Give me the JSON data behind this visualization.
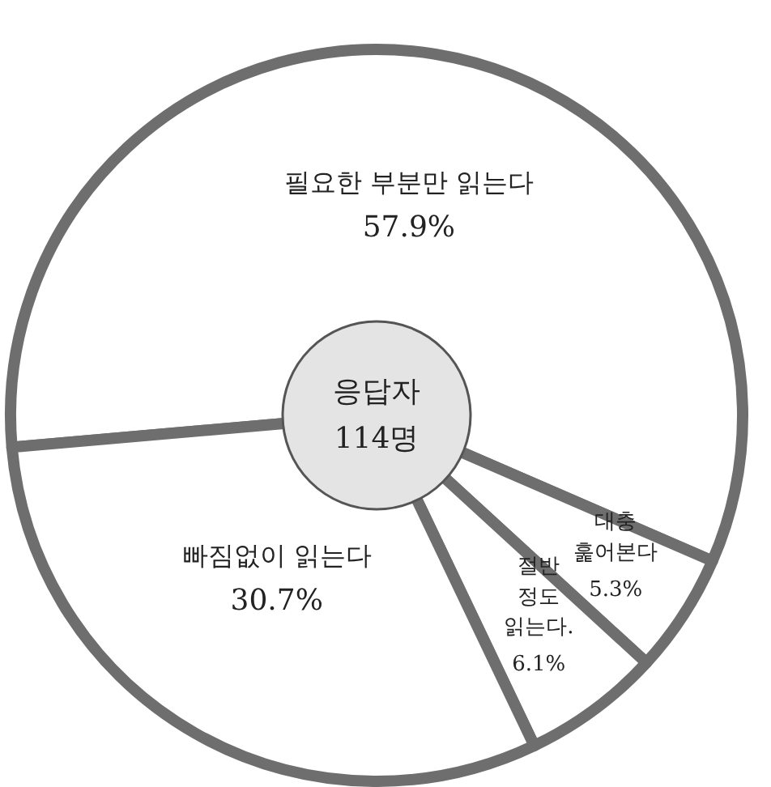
{
  "chart_data": {
    "type": "pie",
    "categories": [
      "필요한 부분만 읽는다",
      "대충\n훑어본다",
      "절반\n정도\n읽는다.",
      "빠짐없이 읽는다"
    ],
    "values": [
      57.9,
      5.3,
      6.1,
      30.7
    ],
    "value_labels": [
      "57.9%",
      "5.3%",
      "6.1%",
      "30.7%"
    ],
    "colors": [
      "#ffffff",
      "#ffffff",
      "#ffffff",
      "#ffffff"
    ],
    "annotations": [
      "응답자\n114명"
    ]
  }
}
